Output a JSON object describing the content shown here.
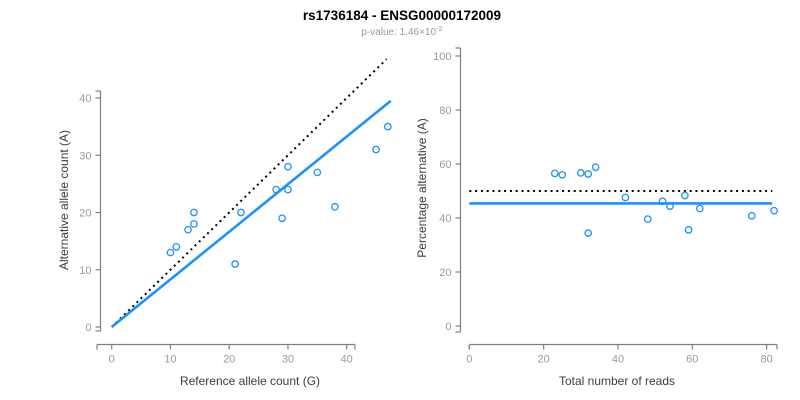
{
  "header": {
    "title": "rs1736184 - ENSG00000172009",
    "subtitle_text": "p-value: 1.46×10",
    "subtitle_exponent": "-2"
  },
  "colors": {
    "accent_blue": "#1E90FF",
    "reference_line_black": "#000000",
    "axis_line": "#7f7f7f",
    "tick_label_gray": "#9a9a9a",
    "axis_title_gray": "#3d3d3d",
    "subtitle_gray": "#9a9a9a",
    "background": "#ffffff"
  },
  "chart_data": [
    {
      "type": "scatter",
      "panel": "left",
      "xlabel": "Reference allele count (G)",
      "ylabel": "Alternative allele count (A)",
      "xlim": [
        0,
        47.5
      ],
      "ylim": [
        0,
        47.3
      ],
      "xticks": [
        0,
        10,
        20,
        30,
        40
      ],
      "yticks": [
        0,
        10,
        20,
        30,
        40
      ],
      "grid": false,
      "point_style": "open-circle",
      "points": [
        [
          10,
          13
        ],
        [
          11,
          14
        ],
        [
          13,
          17
        ],
        [
          14,
          18
        ],
        [
          14,
          20
        ],
        [
          21,
          11
        ],
        [
          22,
          20
        ],
        [
          28,
          24
        ],
        [
          29,
          19
        ],
        [
          30,
          24
        ],
        [
          30,
          28
        ],
        [
          35,
          27
        ],
        [
          38,
          21
        ],
        [
          45,
          31
        ],
        [
          47,
          35
        ]
      ],
      "lines": [
        {
          "name": "identity-line",
          "style": "dotted",
          "color": "#000000",
          "x1": 0,
          "y1": 0,
          "x2": 46.8,
          "y2": 46.8
        },
        {
          "name": "fit-line",
          "style": "solid",
          "color": "#1E90FF",
          "x1": 0,
          "y1": 0,
          "x2": 47.5,
          "y2": 39.5
        }
      ]
    },
    {
      "type": "scatter",
      "panel": "right",
      "xlabel": "Total number of reads",
      "ylabel": "Percentage alternative (A)",
      "xlim": [
        0,
        82.5
      ],
      "ylim": [
        0,
        100
      ],
      "xticks": [
        0,
        20,
        40,
        60,
        80
      ],
      "yticks": [
        0,
        20,
        40,
        60,
        80,
        100
      ],
      "grid": false,
      "point_style": "open-circle",
      "points": [
        [
          23,
          56.5
        ],
        [
          25,
          56.0
        ],
        [
          30,
          56.7
        ],
        [
          32,
          56.3
        ],
        [
          34,
          58.8
        ],
        [
          32,
          34.4
        ],
        [
          42,
          47.6
        ],
        [
          48,
          39.6
        ],
        [
          52,
          46.2
        ],
        [
          54,
          44.4
        ],
        [
          58,
          48.3
        ],
        [
          59,
          35.6
        ],
        [
          62,
          43.5
        ],
        [
          76,
          40.8
        ],
        [
          82,
          42.7
        ]
      ],
      "lines": [
        {
          "name": "balance-line",
          "style": "dotted",
          "color": "#000000",
          "x1": 0,
          "y1": 50,
          "x2": 81.5,
          "y2": 50
        },
        {
          "name": "fit-line",
          "style": "solid",
          "color": "#1E90FF",
          "x1": 0,
          "y1": 45.4,
          "x2": 81.5,
          "y2": 45.4
        }
      ]
    }
  ]
}
